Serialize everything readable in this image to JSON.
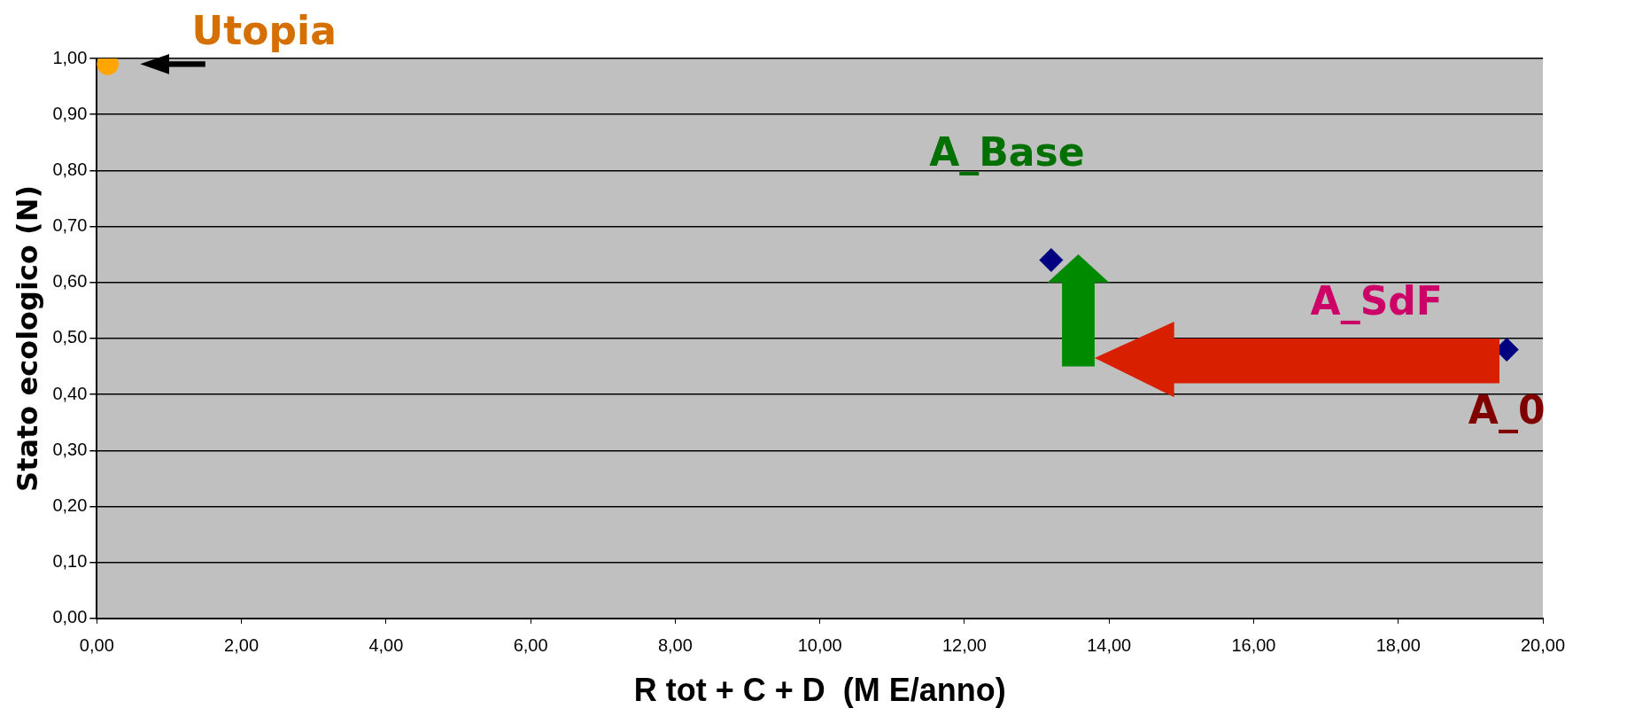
{
  "chart_data": {
    "type": "scatter",
    "xlabel": "R tot + C + D  (M E/anno)",
    "ylabel": "Stato ecologico (N)",
    "xlim": [
      0,
      20
    ],
    "ylim": [
      0,
      1
    ],
    "xticks": [
      {
        "value": 0,
        "label": "0,00"
      },
      {
        "value": 2,
        "label": "2,00"
      },
      {
        "value": 4,
        "label": "4,00"
      },
      {
        "value": 6,
        "label": "6,00"
      },
      {
        "value": 8,
        "label": "8,00"
      },
      {
        "value": 10,
        "label": "10,00"
      },
      {
        "value": 12,
        "label": "12,00"
      },
      {
        "value": 14,
        "label": "14,00"
      },
      {
        "value": 16,
        "label": "16,00"
      },
      {
        "value": 18,
        "label": "18,00"
      },
      {
        "value": 20,
        "label": "20,00"
      }
    ],
    "yticks": [
      {
        "value": 0,
        "label": "0,00"
      },
      {
        "value": 0.1,
        "label": "0,10"
      },
      {
        "value": 0.2,
        "label": "0,20"
      },
      {
        "value": 0.3,
        "label": "0,30"
      },
      {
        "value": 0.4,
        "label": "0,40"
      },
      {
        "value": 0.5,
        "label": "0,50"
      },
      {
        "value": 0.6,
        "label": "0,60"
      },
      {
        "value": 0.7,
        "label": "0,70"
      },
      {
        "value": 0.8,
        "label": "0,80"
      },
      {
        "value": 0.9,
        "label": "0,90"
      },
      {
        "value": 1,
        "label": "1,00"
      }
    ],
    "series": [
      {
        "color": "#000080",
        "marker": "diamond",
        "x": [
          19.5,
          13.2
        ],
        "values": [
          0.48,
          0.64
        ]
      },
      {
        "color": "#ffa500",
        "marker": "circle",
        "x": [
          0.15
        ],
        "values": [
          0.99
        ]
      }
    ],
    "annotations": [
      {
        "text": "Utopia",
        "x": 0.15,
        "y": 0.99
      },
      {
        "text": "A_Base",
        "x": 13.2,
        "y": 0.64
      },
      "A_SdF",
      {
        "text": "A_0",
        "x": 19.5,
        "y": 0.48
      }
    ],
    "grid": "y",
    "legend": false
  }
}
